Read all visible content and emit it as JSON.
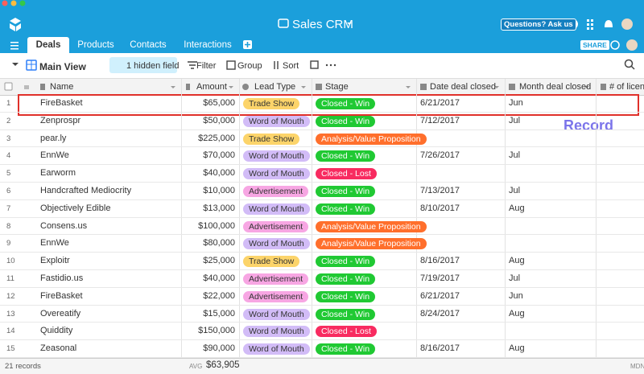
{
  "header": {
    "title": "Sales CRM",
    "help": "Questions? Ask us",
    "share": "SHARE"
  },
  "tabs": [
    "Deals",
    "Products",
    "Contacts",
    "Interactions"
  ],
  "toolbar": {
    "view": "Main View",
    "hidden": "1 hidden field",
    "filter": "Filter",
    "group": "Group",
    "sort": "Sort"
  },
  "table": {
    "columns": [
      "Name",
      "Amount",
      "Lead Type",
      "Stage",
      "Date deal closed",
      "Month deal closed",
      "# of licens"
    ],
    "rows": [
      {
        "number": "1",
        "name": "FireBasket",
        "amount": "$65,000",
        "lead_type": {
          "text": "Trade Show",
          "color": "#fcd46a"
        },
        "stage": {
          "text": "Closed - Win",
          "color": "#20c933"
        },
        "date": "6/21/2017",
        "month": "Jun"
      },
      {
        "number": "2",
        "name": "Zenprospr",
        "amount": "$50,000",
        "lead_type": {
          "text": "Word of Mouth",
          "color": "#d2bcf7"
        },
        "stage": {
          "text": "Closed - Win",
          "color": "#20c933"
        },
        "date": "7/12/2017",
        "month": "Jul"
      },
      {
        "number": "3",
        "name": "pear.ly",
        "amount": "$225,000",
        "lead_type": {
          "text": "Trade Show",
          "color": "#fcd46a"
        },
        "stage": {
          "text": "Analysis/Value Proposition",
          "color": "#ff6f2c"
        },
        "date": null,
        "month": null
      },
      {
        "number": "4",
        "name": "EnnWe",
        "amount": "$70,000",
        "lead_type": {
          "text": "Word of Mouth",
          "color": "#d2bcf7"
        },
        "stage": {
          "text": "Closed - Win",
          "color": "#20c933"
        },
        "date": "7/26/2017",
        "month": "Jul"
      },
      {
        "number": "5",
        "name": "Earworm",
        "amount": "$40,000",
        "lead_type": {
          "text": "Word of Mouth",
          "color": "#d2bcf7"
        },
        "stage": {
          "text": "Closed - Lost",
          "color": "#f82b60"
        },
        "date": null,
        "month": null
      },
      {
        "number": "6",
        "name": "Handcrafted Mediocrity",
        "amount": "$10,000",
        "lead_type": {
          "text": "Advertisement",
          "color": "#f7a6e3"
        },
        "stage": {
          "text": "Closed - Win",
          "color": "#20c933"
        },
        "date": "7/13/2017",
        "month": "Jul"
      },
      {
        "number": "7",
        "name": "Objectively Edible",
        "amount": "$13,000",
        "lead_type": {
          "text": "Word of Mouth",
          "color": "#d2bcf7"
        },
        "stage": {
          "text": "Closed - Win",
          "color": "#20c933"
        },
        "date": "8/10/2017",
        "month": "Aug"
      },
      {
        "number": "8",
        "name": "Consens.us",
        "amount": "$100,000",
        "lead_type": {
          "text": "Advertisement",
          "color": "#f7a6e3"
        },
        "stage": {
          "text": "Analysis/Value Proposition",
          "color": "#ff6f2c"
        },
        "date": null,
        "month": null
      },
      {
        "number": "9",
        "name": "EnnWe",
        "amount": "$80,000",
        "lead_type": {
          "text": "Word of Mouth",
          "color": "#d2bcf7"
        },
        "stage": {
          "text": "Analysis/Value Proposition",
          "color": "#ff6f2c"
        },
        "date": null,
        "month": null
      },
      {
        "number": "10",
        "name": "Exploitr",
        "amount": "$25,000",
        "lead_type": {
          "text": "Trade Show",
          "color": "#fcd46a"
        },
        "stage": {
          "text": "Closed - Win",
          "color": "#20c933"
        },
        "date": "8/16/2017",
        "month": "Aug"
      },
      {
        "number": "11",
        "name": "Fastidio.us",
        "amount": "$40,000",
        "lead_type": {
          "text": "Advertisement",
          "color": "#f7a6e3"
        },
        "stage": {
          "text": "Closed - Win",
          "color": "#20c933"
        },
        "date": "7/19/2017",
        "month": "Jul"
      },
      {
        "number": "12",
        "name": "FireBasket",
        "amount": "$22,000",
        "lead_type": {
          "text": "Advertisement",
          "color": "#f7a6e3"
        },
        "stage": {
          "text": "Closed - Win",
          "color": "#20c933"
        },
        "date": "6/21/2017",
        "month": "Jun"
      },
      {
        "number": "13",
        "name": "Overeatify",
        "amount": "$15,000",
        "lead_type": {
          "text": "Word of Mouth",
          "color": "#d2bcf7"
        },
        "stage": {
          "text": "Closed - Win",
          "color": "#20c933"
        },
        "date": "8/24/2017",
        "month": "Aug"
      },
      {
        "number": "14",
        "name": "Quiddity",
        "amount": "$150,000",
        "lead_type": {
          "text": "Word of Mouth",
          "color": "#d2bcf7"
        },
        "stage": {
          "text": "Closed - Lost",
          "color": "#f82b60"
        },
        "date": null,
        "month": null
      },
      {
        "number": "15",
        "name": "Zeasonal",
        "amount": "$90,000",
        "lead_type": {
          "text": "Word of Mouth",
          "color": "#d2bcf7"
        },
        "stage": {
          "text": "Closed - Win",
          "color": "#20c933"
        },
        "date": "8/16/2017",
        "month": "Aug"
      }
    ]
  },
  "footer": {
    "records": "21 records",
    "avg_label": "AVG",
    "avg_value": "$63,905",
    "mdn": "MDN"
  },
  "annotation": "Record"
}
